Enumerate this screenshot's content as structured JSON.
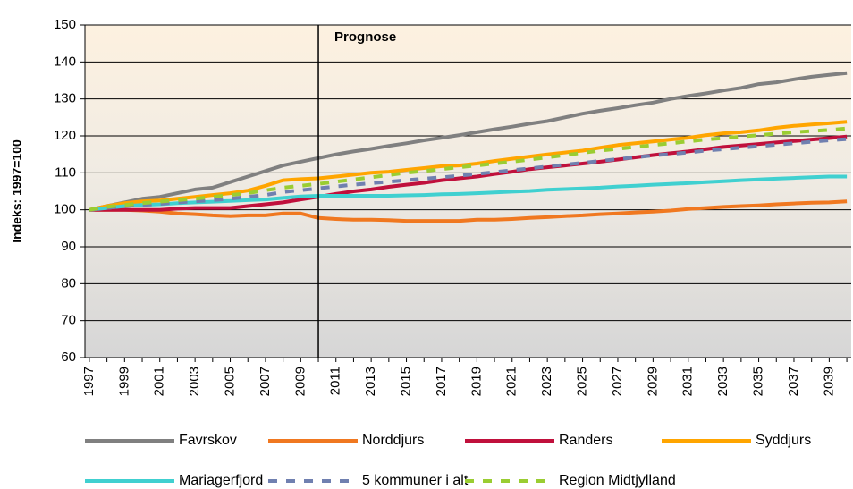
{
  "chart_data": {
    "type": "line",
    "y_label": "Indeks: 1997=100",
    "annotation": {
      "text": "Prognose",
      "x": 2010
    },
    "x": [
      1997,
      1998,
      1999,
      2000,
      2001,
      2002,
      2003,
      2004,
      2005,
      2006,
      2007,
      2008,
      2009,
      2010,
      2011,
      2012,
      2013,
      2014,
      2015,
      2016,
      2017,
      2018,
      2019,
      2020,
      2021,
      2022,
      2023,
      2024,
      2025,
      2026,
      2027,
      2028,
      2029,
      2030,
      2031,
      2032,
      2033,
      2034,
      2035,
      2036,
      2037,
      2038,
      2039,
      2040
    ],
    "xlim": [
      1996.75,
      2040.25
    ],
    "xticks": [
      1997,
      1999,
      2001,
      2003,
      2005,
      2007,
      2009,
      2011,
      2013,
      2015,
      2017,
      2019,
      2021,
      2023,
      2025,
      2027,
      2029,
      2031,
      2033,
      2035,
      2037,
      2039
    ],
    "ylim": [
      60,
      150
    ],
    "yticks": [
      60,
      70,
      80,
      90,
      100,
      110,
      120,
      130,
      140,
      150
    ],
    "grid": true,
    "series": [
      {
        "name": "Favrskov",
        "color": "#808080",
        "dash": false,
        "values": [
          100,
          101,
          102,
          103,
          103.5,
          104.5,
          105.5,
          106,
          107.5,
          109,
          110.5,
          112,
          113,
          114,
          115,
          115.8,
          116.5,
          117.3,
          118,
          118.8,
          119.5,
          120.2,
          121,
          121.8,
          122.5,
          123.3,
          124,
          125,
          126,
          126.8,
          127.5,
          128.3,
          129,
          130,
          130.8,
          131.5,
          132.3,
          133,
          134,
          134.5,
          135.3,
          136,
          136.5,
          137
        ]
      },
      {
        "name": "Norddjurs",
        "color": "#f07820",
        "dash": false,
        "values": [
          100,
          100,
          100,
          99.8,
          99.5,
          99,
          98.8,
          98.5,
          98.3,
          98.5,
          98.5,
          99,
          99,
          97.8,
          97.5,
          97.3,
          97.3,
          97.2,
          97,
          97,
          97,
          97,
          97.3,
          97.3,
          97.5,
          97.8,
          98,
          98.3,
          98.5,
          98.8,
          99,
          99.3,
          99.5,
          99.8,
          100.2,
          100.5,
          100.8,
          101,
          101.2,
          101.5,
          101.7,
          101.9,
          102,
          102.3
        ]
      },
      {
        "name": "Randers",
        "color": "#c0103c",
        "dash": false,
        "values": [
          100,
          100,
          100,
          100,
          100,
          100.3,
          100.5,
          100.5,
          100.5,
          101,
          101.5,
          102,
          102.8,
          103.5,
          104.3,
          105,
          105.5,
          106.2,
          106.8,
          107.3,
          108,
          108.5,
          109,
          109.7,
          110.3,
          111,
          111.5,
          112,
          112.5,
          113,
          113.6,
          114.2,
          114.8,
          115.3,
          115.8,
          116.4,
          117,
          117.4,
          117.8,
          118.2,
          118.6,
          119,
          119.4,
          119.8
        ]
      },
      {
        "name": "Syddjurs",
        "color": "#ffa500",
        "dash": false,
        "values": [
          100,
          101,
          101.8,
          102.3,
          102.5,
          103,
          103.5,
          104,
          104.5,
          105.2,
          106.5,
          108,
          108.3,
          108.5,
          109,
          109.5,
          110,
          110.3,
          110.8,
          111.3,
          111.8,
          112,
          112.5,
          113.2,
          113.8,
          114.4,
          115,
          115.5,
          116,
          116.8,
          117.5,
          118,
          118.5,
          119,
          119.5,
          120.2,
          120.7,
          121,
          121.5,
          122.2,
          122.7,
          123.1,
          123.4,
          123.8
        ]
      },
      {
        "name": "Mariagerfjord",
        "color": "#40d0d0",
        "dash": false,
        "values": [
          100,
          100.5,
          101,
          101.3,
          101.5,
          101.8,
          102,
          102.2,
          102.4,
          102.6,
          102.8,
          103.2,
          103.6,
          103.8,
          103.8,
          103.8,
          103.8,
          103.8,
          103.9,
          104,
          104.2,
          104.3,
          104.5,
          104.7,
          104.9,
          105.1,
          105.4,
          105.6,
          105.8,
          106,
          106.3,
          106.5,
          106.8,
          107,
          107.2,
          107.5,
          107.7,
          108,
          108.2,
          108.4,
          108.6,
          108.8,
          109,
          109
        ]
      },
      {
        "name": "5 kommuner i alt",
        "color": "#7080b0",
        "dash": true,
        "values": [
          100,
          100.5,
          101,
          101.3,
          101.6,
          102,
          102.3,
          102.6,
          103,
          103.5,
          104,
          104.8,
          105.3,
          105.8,
          106.3,
          106.8,
          107.2,
          107.6,
          108,
          108.4,
          108.8,
          109.2,
          109.7,
          110.2,
          110.7,
          111.2,
          111.7,
          112.2,
          112.7,
          113.2,
          113.7,
          114.2,
          114.7,
          115.1,
          115.5,
          116,
          116.4,
          116.8,
          117.2,
          117.6,
          118,
          118.4,
          118.8,
          119.1
        ]
      },
      {
        "name": "Region Midtjylland",
        "color": "#9acd32",
        "dash": true,
        "values": [
          100,
          100.8,
          101.3,
          101.8,
          102.2,
          102.6,
          103,
          103.5,
          104,
          104.5,
          105.3,
          106,
          106.5,
          107,
          107.6,
          108.2,
          108.8,
          109.4,
          110,
          110.5,
          111,
          111.5,
          112,
          112.5,
          113,
          113.6,
          114.2,
          114.8,
          115.4,
          116,
          116.5,
          117,
          117.5,
          118,
          118.5,
          119,
          119.4,
          119.8,
          120.2,
          120.6,
          121,
          121.3,
          121.6,
          122
        ]
      }
    ]
  }
}
